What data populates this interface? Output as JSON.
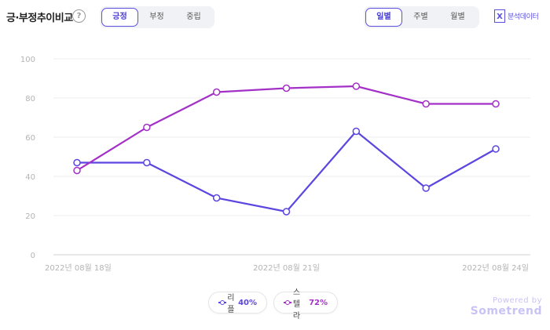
{
  "header": {
    "title": "긍·부정추이비교",
    "help_symbol": "?",
    "sentiment_tabs": [
      {
        "label": "긍정",
        "active": true
      },
      {
        "label": "부정",
        "active": false
      },
      {
        "label": "중립",
        "active": false
      }
    ],
    "period_tabs": [
      {
        "label": "일별",
        "active": true
      },
      {
        "label": "주별",
        "active": false
      },
      {
        "label": "월별",
        "active": false
      }
    ],
    "excel_icon_symbol": "X",
    "excel_label": "분석데이터"
  },
  "legend": [
    {
      "name": "리플",
      "pct": "40%",
      "color": "#5b46e0"
    },
    {
      "name": "스텔라",
      "pct": "72%",
      "color": "#a330c7"
    }
  ],
  "powered": {
    "line1": "Powered by",
    "line2": "Sometrend"
  },
  "chart_data": {
    "type": "line",
    "x": [
      "2022년 08월 18일",
      "2022년 08월 19일",
      "2022년 08월 20일",
      "2022년 08월 21일",
      "2022년 08월 22일",
      "2022년 08월 23일",
      "2022년 08월 24일"
    ],
    "x_tick_labels": [
      {
        "index": 0,
        "label": "2022년 08월 18일"
      },
      {
        "index": 3,
        "label": "2022년 08월 21일"
      },
      {
        "index": 6,
        "label": "2022년 08월 24일"
      }
    ],
    "y_ticks": [
      0,
      20,
      40,
      60,
      80,
      100
    ],
    "ylim": [
      0,
      100
    ],
    "grid": true,
    "legend_position": "bottom",
    "series": [
      {
        "name": "리플",
        "color": "#5b46e0",
        "values": [
          47,
          47,
          29,
          22,
          63,
          34,
          54
        ]
      },
      {
        "name": "스텔라",
        "color": "#a330c7",
        "values": [
          43,
          65,
          83,
          85,
          86,
          77,
          77
        ]
      }
    ]
  }
}
